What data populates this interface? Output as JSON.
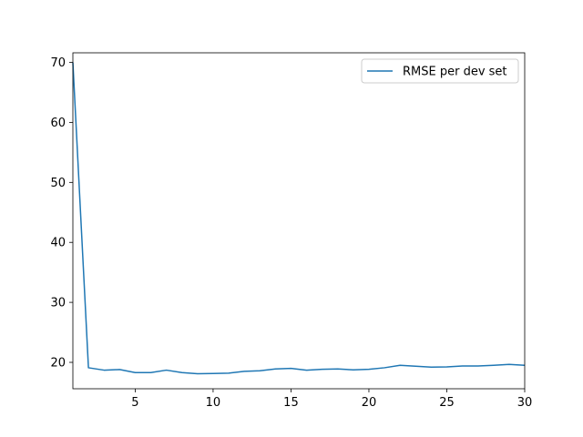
{
  "chart_data": {
    "type": "line",
    "title": "",
    "xlabel": "",
    "ylabel": "",
    "xlim": [
      1,
      30
    ],
    "ylim": [
      15.6,
      71.6
    ],
    "xticks": [
      5,
      10,
      15,
      20,
      25,
      30
    ],
    "yticks": [
      20,
      30,
      40,
      50,
      60,
      70
    ],
    "grid": false,
    "legend_position": "upper-right",
    "series_color": "#1f77b4",
    "series": [
      {
        "name": "RMSE per dev set",
        "x": [
          1,
          2,
          3,
          4,
          5,
          6,
          7,
          8,
          9,
          10,
          11,
          12,
          13,
          14,
          15,
          16,
          17,
          18,
          19,
          20,
          21,
          22,
          23,
          24,
          25,
          26,
          27,
          28,
          29,
          30
        ],
        "y": [
          70.0,
          19.1,
          18.7,
          18.8,
          18.3,
          18.3,
          18.7,
          18.3,
          18.1,
          18.15,
          18.2,
          18.5,
          18.6,
          18.9,
          19.0,
          18.7,
          18.85,
          18.9,
          18.75,
          18.85,
          19.1,
          19.5,
          19.35,
          19.2,
          19.25,
          19.4,
          19.4,
          19.5,
          19.65,
          19.5
        ]
      }
    ]
  }
}
